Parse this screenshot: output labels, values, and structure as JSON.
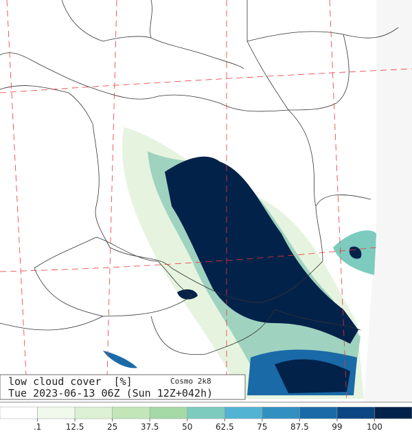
{
  "title": "low cloud cover  [%]",
  "model": "Cosmo 2k8",
  "valid_time": "Tue 2023-06-13 06Z (Sun 12Z+042h)",
  "colorbar": {
    "colors": [
      "#ffffff",
      "#f0f9ec",
      "#dcf1d4",
      "#c2e6b8",
      "#a4d9a6",
      "#7ccbbe",
      "#52b3d2",
      "#3290c1",
      "#1a6aa8",
      "#0b4683",
      "#03224a"
    ],
    "ticks": [
      {
        "value": 0.1,
        "label": ".1"
      },
      12.5,
      25,
      37.5,
      50,
      62.5,
      75,
      87.5,
      99,
      100
    ]
  }
}
